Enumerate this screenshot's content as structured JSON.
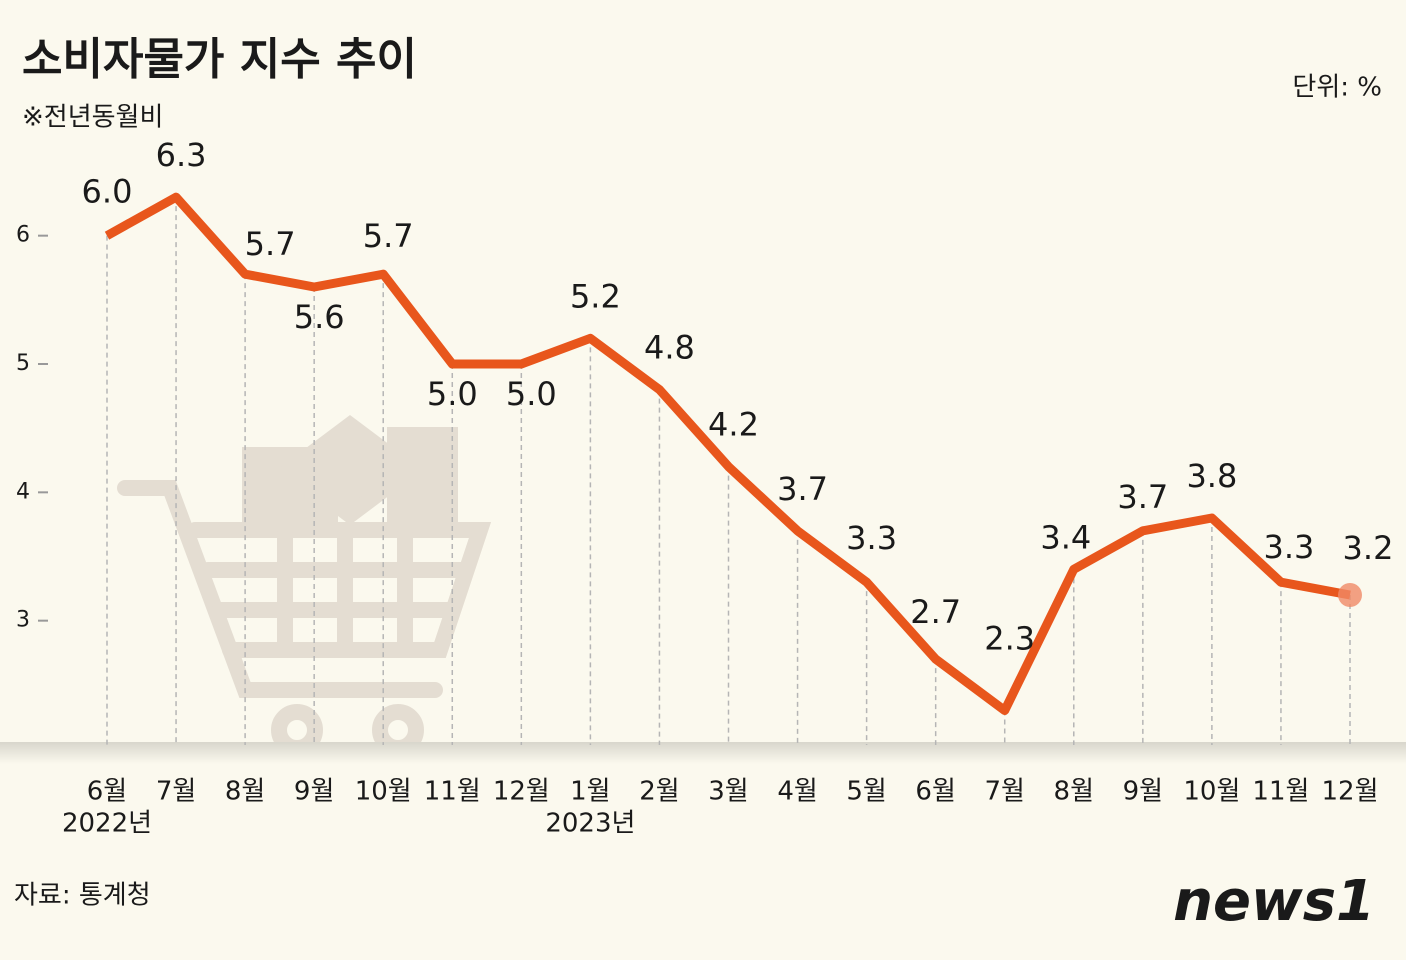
{
  "chart_data": {
    "type": "line",
    "title": "소비자물가 지수 추이",
    "subtitle": "※전년동월비",
    "unit_label": "단위: %",
    "source": "자료: 통계청",
    "logo": "news1",
    "categories": [
      "6월",
      "7월",
      "8월",
      "9월",
      "10월",
      "11월",
      "12월",
      "1월",
      "2월",
      "3월",
      "4월",
      "5월",
      "6월",
      "7월",
      "8월",
      "9월",
      "10월",
      "11월",
      "12월"
    ],
    "year_labels": [
      "2022년",
      null,
      null,
      null,
      null,
      null,
      null,
      "2023년",
      null,
      null,
      null,
      null,
      null,
      null,
      null,
      null,
      null,
      null,
      null
    ],
    "values": [
      6.0,
      6.3,
      5.7,
      5.6,
      5.7,
      5.0,
      5.0,
      5.2,
      4.8,
      4.2,
      3.7,
      3.3,
      2.7,
      2.3,
      3.4,
      3.7,
      3.8,
      3.3,
      3.2
    ],
    "value_labels": [
      "6.0",
      "6.3",
      "5.7",
      "5.6",
      "5.7",
      "5.0",
      "5.0",
      "5.2",
      "4.8",
      "4.2",
      "3.7",
      "3.3",
      "2.7",
      "2.3",
      "3.4",
      "3.7",
      "3.8",
      "3.3",
      "3.2"
    ],
    "color": "#e8561c",
    "ylim": [
      2,
      6.8
    ],
    "yticks": [
      3,
      4,
      5,
      6
    ]
  }
}
